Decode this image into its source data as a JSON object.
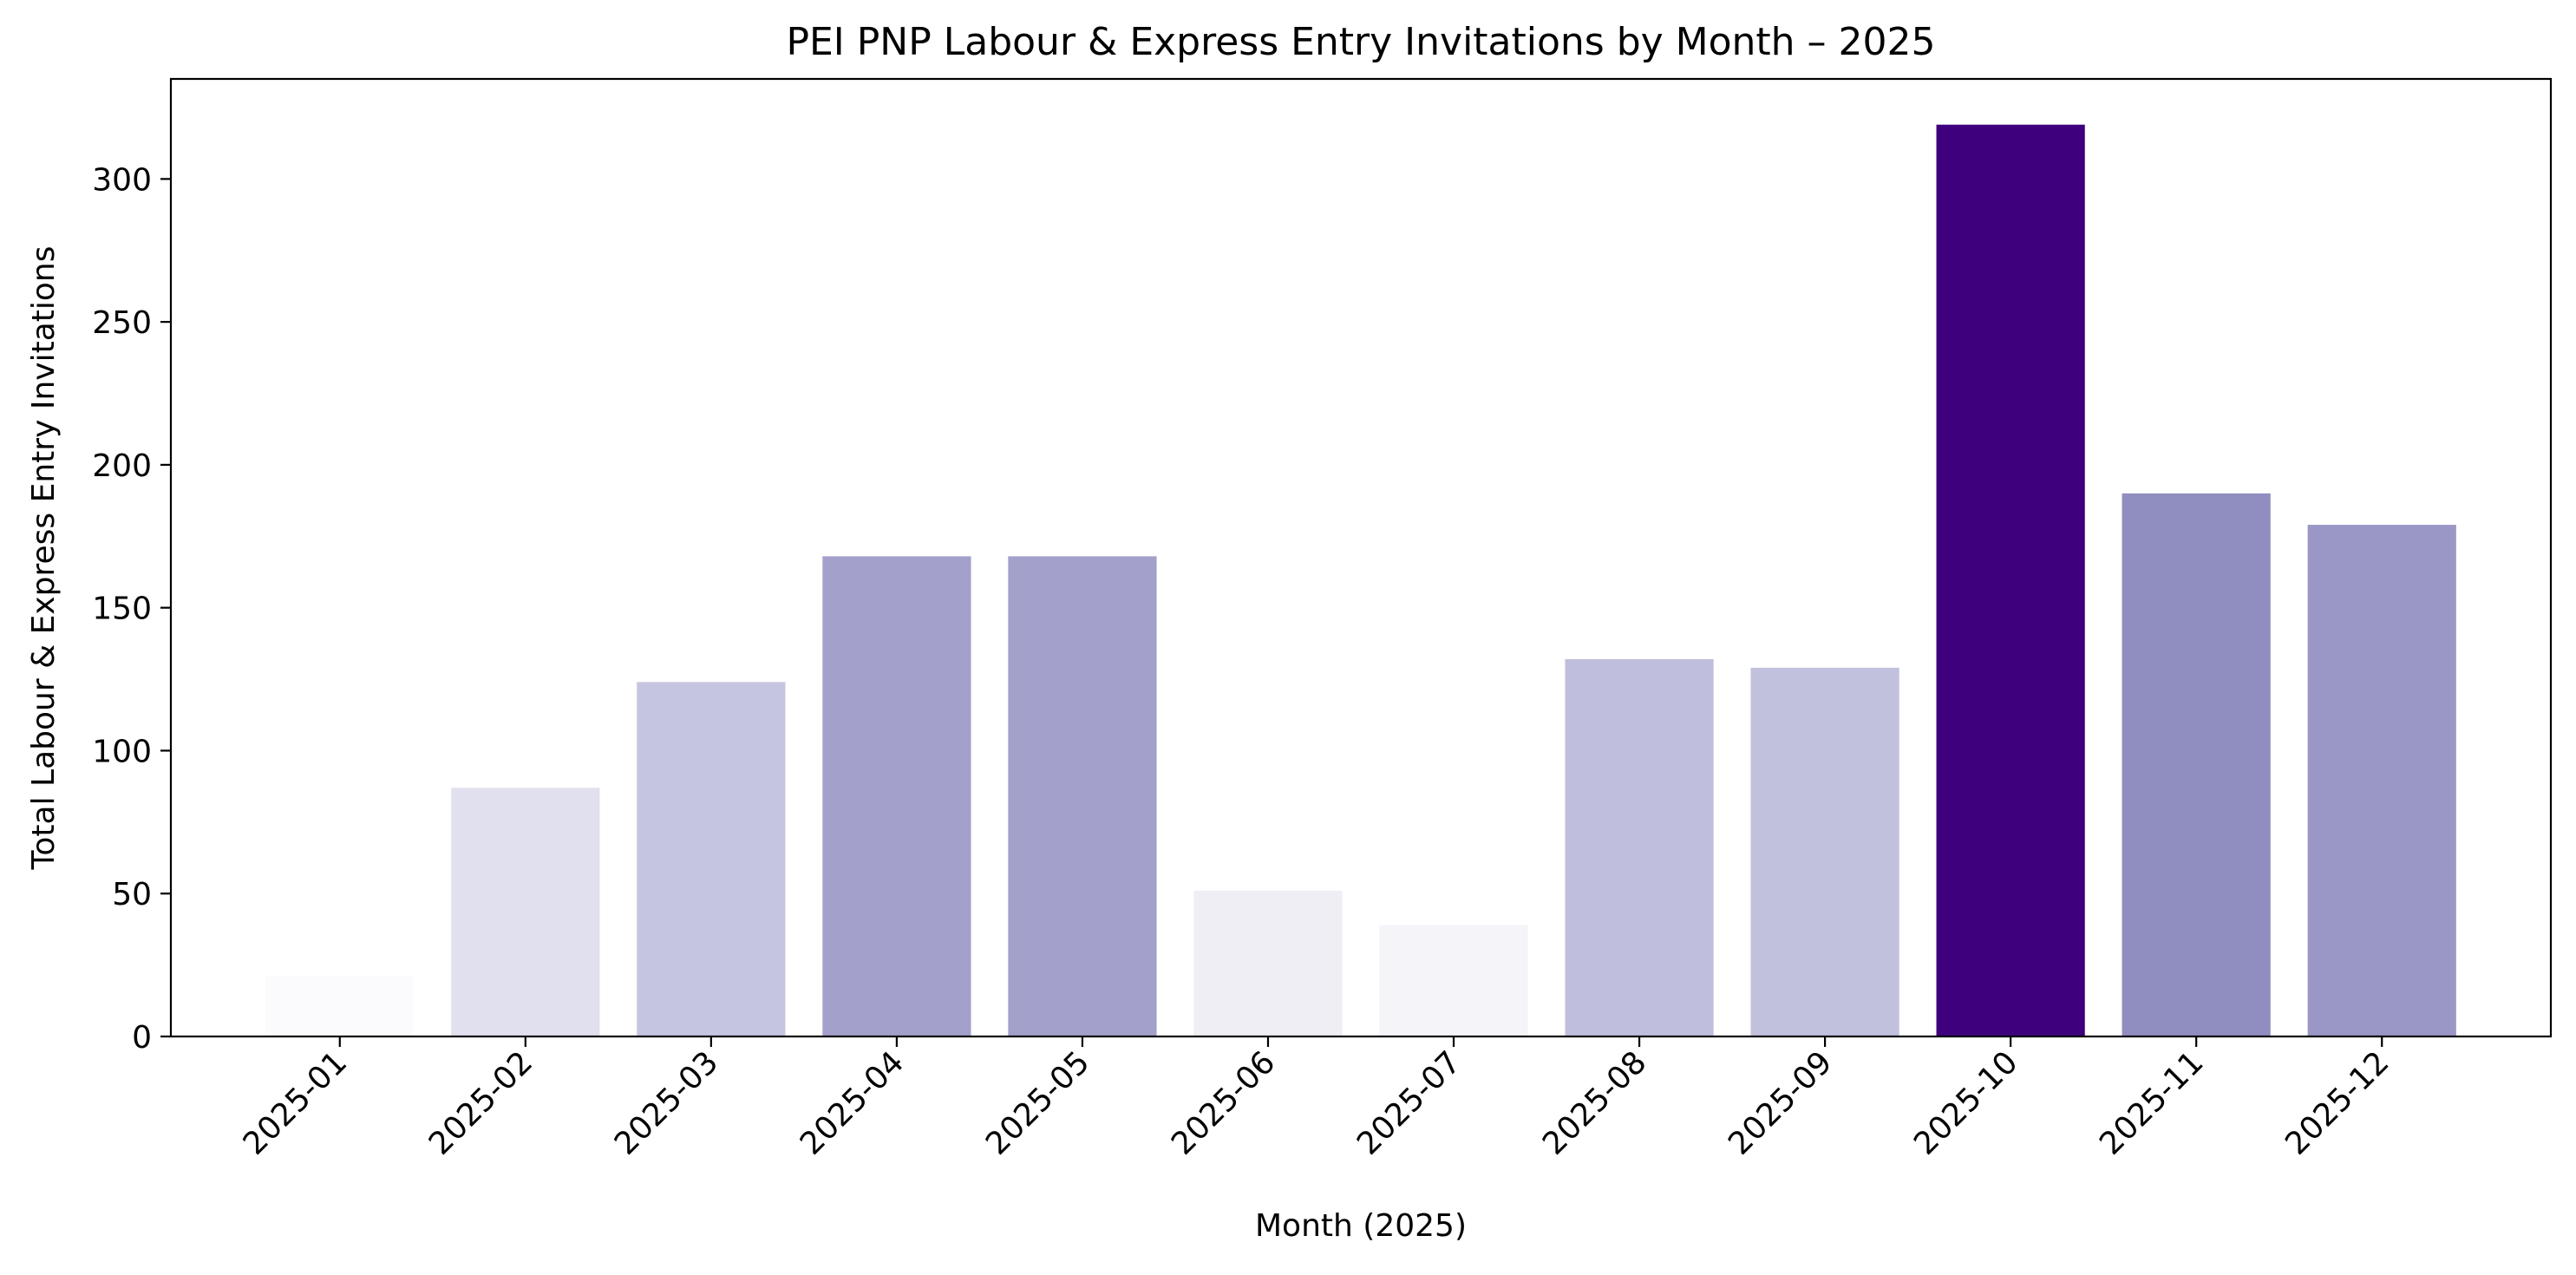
{
  "chart_data": {
    "type": "bar",
    "title": "PEI PNP Labour & Express Entry Invitations by Month – 2025",
    "xlabel": "Month (2025)",
    "ylabel": "Total Labour & Express Entry Invitations",
    "categories": [
      "2025-01",
      "2025-02",
      "2025-03",
      "2025-04",
      "2025-05",
      "2025-06",
      "2025-07",
      "2025-08",
      "2025-09",
      "2025-10",
      "2025-11",
      "2025-12"
    ],
    "values": [
      21,
      87,
      124,
      168,
      168,
      51,
      39,
      132,
      129,
      319,
      190,
      179
    ],
    "colors": [
      "#fbfbfd",
      "#e1e0ee",
      "#c5c5e1",
      "#a3a0cb",
      "#a3a0cb",
      "#efeef5",
      "#f5f4f9",
      "#bfbfdd",
      "#c1c1de",
      "#3f007d",
      "#908dc0",
      "#9a97c6"
    ],
    "ylim": [
      0,
      335
    ],
    "yticks": [
      0,
      50,
      100,
      150,
      200,
      250,
      300
    ],
    "grid": false,
    "legend": "none"
  }
}
